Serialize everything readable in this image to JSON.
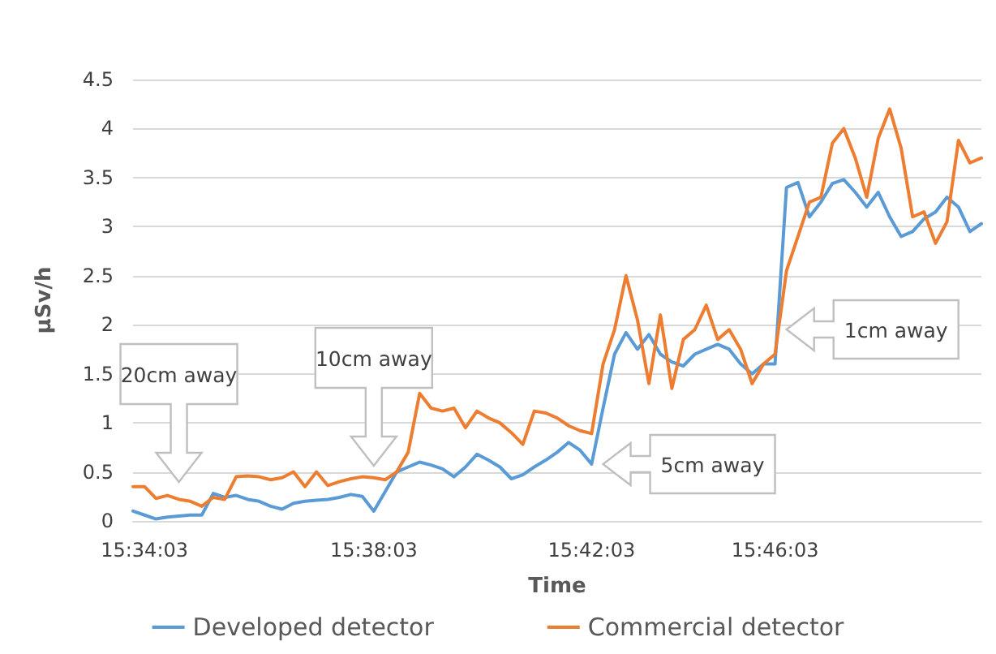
{
  "chart_data": {
    "type": "line",
    "xlabel": "Time",
    "ylabel": "µSv/h",
    "categories": [
      null,
      "15:34:03",
      null,
      null,
      null,
      null,
      null,
      null,
      null,
      null,
      null,
      null,
      null,
      null,
      null,
      null,
      null,
      null,
      null,
      null,
      null,
      "15:38:03",
      null,
      null,
      null,
      null,
      null,
      null,
      null,
      null,
      null,
      null,
      null,
      null,
      null,
      null,
      null,
      null,
      null,
      null,
      "15:42:03",
      null,
      null,
      null,
      null,
      null,
      null,
      null,
      null,
      null,
      null,
      null,
      null,
      null,
      null,
      null,
      "15:46:03",
      null,
      null,
      null,
      null,
      null,
      null,
      null,
      null,
      null,
      null,
      null,
      null,
      null,
      null,
      null,
      null,
      null,
      null
    ],
    "series": [
      {
        "name": "Developed detector",
        "color": "#5b9bd5",
        "values": [
          0.1,
          0.06,
          0.02,
          0.04,
          0.05,
          0.06,
          0.06,
          0.28,
          0.24,
          0.26,
          0.22,
          0.2,
          0.15,
          0.12,
          0.18,
          0.2,
          0.21,
          0.22,
          0.24,
          0.27,
          0.25,
          0.1,
          0.3,
          0.5,
          0.55,
          0.6,
          0.57,
          0.53,
          0.45,
          0.55,
          0.68,
          0.62,
          0.55,
          0.43,
          0.47,
          0.55,
          0.62,
          0.7,
          0.8,
          0.72,
          0.58,
          1.15,
          1.7,
          1.92,
          1.75,
          1.9,
          1.7,
          1.62,
          1.58,
          1.7,
          1.75,
          1.8,
          1.75,
          1.6,
          1.5,
          1.6,
          1.6,
          3.4,
          3.45,
          3.1,
          3.25,
          3.44,
          3.48,
          3.35,
          3.2,
          3.35,
          3.1,
          2.9,
          2.95,
          3.08,
          3.15,
          3.3,
          3.2,
          2.95,
          3.03
        ]
      },
      {
        "name": "Commercial detector",
        "color": "#ed7d31",
        "values": [
          0.35,
          0.35,
          0.23,
          0.26,
          0.22,
          0.2,
          0.15,
          0.24,
          0.22,
          0.45,
          0.46,
          0.45,
          0.42,
          0.44,
          0.5,
          0.35,
          0.5,
          0.36,
          0.4,
          0.43,
          0.45,
          0.44,
          0.42,
          0.5,
          0.7,
          1.3,
          1.15,
          1.12,
          1.15,
          0.95,
          1.12,
          1.05,
          1.0,
          0.9,
          0.78,
          1.12,
          1.1,
          1.05,
          0.97,
          0.92,
          0.89,
          1.6,
          1.95,
          2.5,
          2.05,
          1.4,
          2.1,
          1.35,
          1.85,
          1.95,
          2.2,
          1.85,
          1.95,
          1.75,
          1.4,
          1.6,
          1.7,
          2.55,
          2.9,
          3.25,
          3.3,
          3.85,
          4.0,
          3.7,
          3.3,
          3.9,
          4.2,
          3.8,
          3.1,
          3.15,
          2.83,
          3.05,
          3.88,
          3.65,
          3.7
        ]
      }
    ],
    "ylim": [
      0,
      4.5
    ],
    "yticks": [
      0,
      0.5,
      1,
      1.5,
      2,
      2.5,
      3,
      3.5,
      4,
      4.5
    ],
    "annotations": [
      "20cm away",
      "10cm away",
      "5cm away",
      "1cm away"
    ],
    "grid": "y",
    "legend": "bottom",
    "marker": "none",
    "line_style": "solid"
  }
}
